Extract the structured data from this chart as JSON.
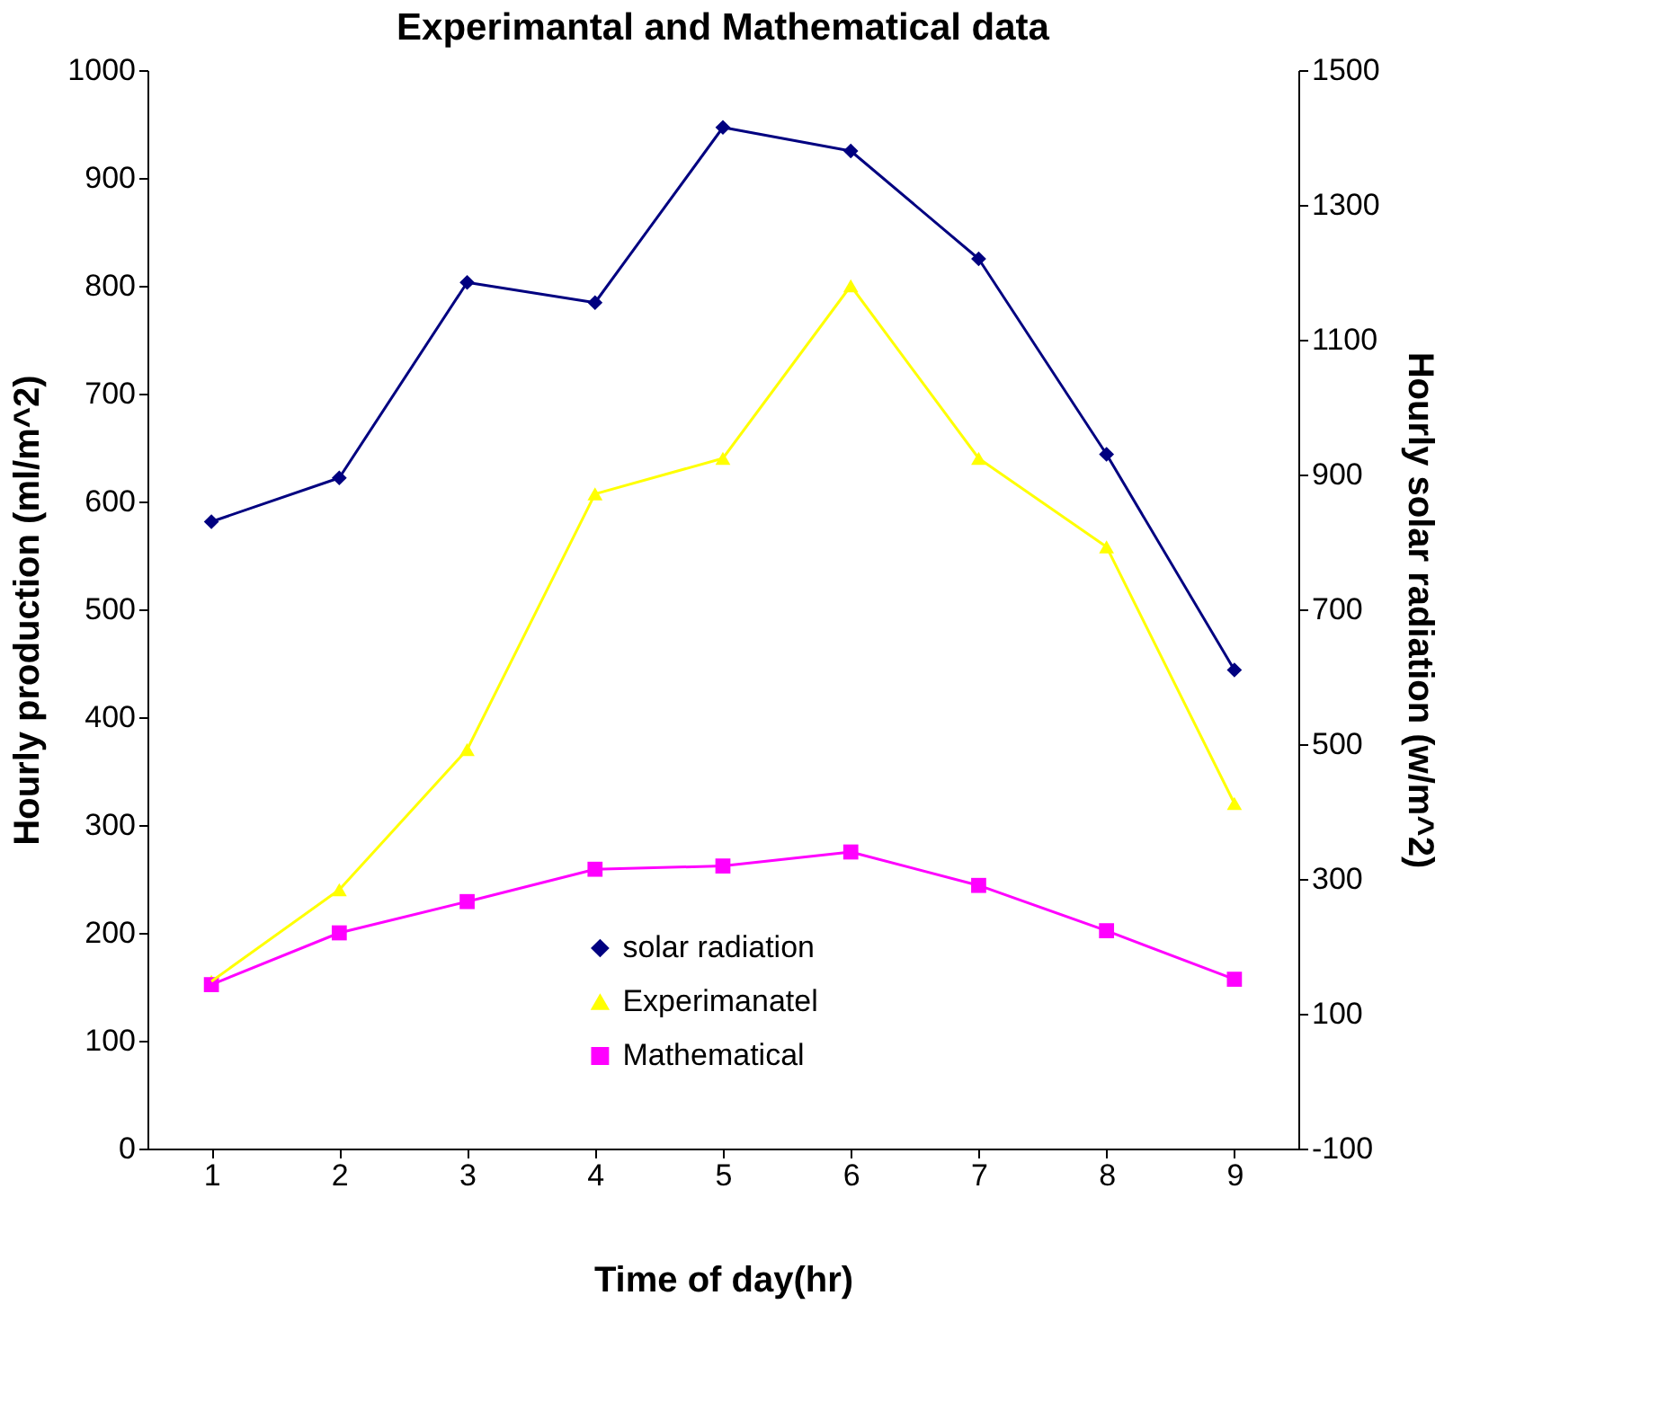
{
  "chart_data": {
    "type": "line",
    "title": "Experimantal and Mathematical data",
    "xlabel": "Time of day(hr)",
    "ylabel": "Hourly production (ml/m^2)",
    "y2label": "Hourly solar radiation (w/m^2)",
    "categories": [
      "1",
      "2",
      "3",
      "4",
      "5",
      "6",
      "7",
      "8",
      "9"
    ],
    "series": [
      {
        "name": "solar radiation",
        "color": "#000080",
        "marker": "diamond",
        "axis": "y2",
        "values": [
          830,
          895,
          1185,
          1155,
          1415,
          1380,
          1220,
          930,
          610
        ]
      },
      {
        "name": "Experimanatel",
        "color": "#ffff00",
        "marker": "triangle",
        "values": [
          155,
          240,
          370,
          607,
          640,
          800,
          640,
          558,
          320
        ]
      },
      {
        "name": "Mathematical",
        "color": "#ff00ff",
        "marker": "square",
        "values": [
          152,
          200,
          229,
          259,
          262,
          275,
          244,
          202,
          157
        ]
      }
    ],
    "ylim": [
      0,
      1000
    ],
    "yticks": [
      0,
      100,
      200,
      300,
      400,
      500,
      600,
      700,
      800,
      900,
      1000
    ],
    "y2lim": [
      -100,
      1500
    ],
    "y2ticks": [
      -100,
      100,
      300,
      500,
      700,
      900,
      1100,
      1300,
      1500
    ],
    "grid": false,
    "legend": "bottom",
    "line_style": "solid"
  }
}
